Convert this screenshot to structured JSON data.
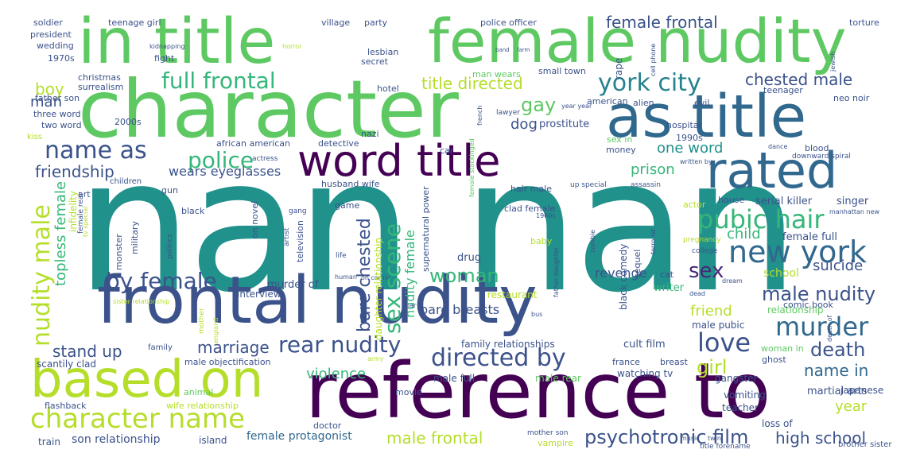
{
  "palette": {
    "teal": "#21918c",
    "yellow_green": "#b5de2b",
    "green": "#5ec962",
    "dark_purple": "#440154",
    "blue": "#3b528b",
    "mid_blue": "#31688e",
    "aqua": "#1fa187",
    "light_green": "#90d743",
    "purple": "#482878",
    "yellow": "#fde725",
    "sea": "#35b779",
    "indigo": "#443983",
    "cyan": "#26828e"
  },
  "words": [
    {
      "text": "nan nan",
      "color": "#21918c"
    },
    {
      "text": "character",
      "color": "#5ec962"
    },
    {
      "text": "in title",
      "color": "#5ec962"
    },
    {
      "text": "female nudity",
      "color": "#5ec962"
    },
    {
      "text": "frontal nudity",
      "color": "#3b528b"
    },
    {
      "text": "reference to",
      "color": "#440154"
    },
    {
      "text": "based on",
      "color": "#b5de2b"
    },
    {
      "text": "as title",
      "color": "#31688e"
    },
    {
      "text": "word title",
      "color": "#440154"
    },
    {
      "text": "rated",
      "color": "#31688e"
    },
    {
      "text": "new york",
      "color": "#31688e"
    },
    {
      "text": "york city",
      "color": "#26828e"
    },
    {
      "text": "character name",
      "color": "#b5de2b"
    },
    {
      "text": "full frontal",
      "color": "#35b779"
    },
    {
      "text": "name as",
      "color": "#3b528b"
    },
    {
      "text": "police",
      "color": "#35b779"
    },
    {
      "text": "pubic hair",
      "color": "#35b779"
    },
    {
      "text": "by female",
      "color": "#3b528b"
    },
    {
      "text": "directed by",
      "color": "#3b528b"
    },
    {
      "text": "murder",
      "color": "#31688e"
    },
    {
      "text": "rear nudity",
      "color": "#3b528b"
    },
    {
      "text": "love",
      "color": "#3b528b"
    },
    {
      "text": "woman",
      "color": "#35b779"
    },
    {
      "text": "male nudity",
      "color": "#3b528b"
    },
    {
      "text": "psychotronic film",
      "color": "#3b528b"
    },
    {
      "text": "sex",
      "color": "#482878"
    },
    {
      "text": "death",
      "color": "#3b528b"
    },
    {
      "text": "girl",
      "color": "#b5de2b"
    },
    {
      "text": "title directed",
      "color": "#b5de2b"
    },
    {
      "text": "male frontal",
      "color": "#b5de2b"
    },
    {
      "text": "high school",
      "color": "#3b528b"
    },
    {
      "text": "gay",
      "color": "#5ec962"
    },
    {
      "text": "boy",
      "color": "#b5de2b"
    },
    {
      "text": "friendship",
      "color": "#3b528b"
    },
    {
      "text": "chested male",
      "color": "#3b528b"
    },
    {
      "text": "female frontal",
      "color": "#3b528b"
    },
    {
      "text": "marriage",
      "color": "#3b528b"
    },
    {
      "text": "stand up",
      "color": "#3b528b"
    },
    {
      "text": "name in",
      "color": "#31688e"
    },
    {
      "text": "violence",
      "color": "#35b779"
    },
    {
      "text": "friend",
      "color": "#b5de2b"
    },
    {
      "text": "child",
      "color": "#35b779"
    },
    {
      "text": "prison",
      "color": "#35b779"
    },
    {
      "text": "one word",
      "color": "#21918c"
    },
    {
      "text": "suicide",
      "color": "#3b528b"
    },
    {
      "text": "dog",
      "color": "#3b528b"
    },
    {
      "text": "man",
      "color": "#3b528b"
    },
    {
      "text": "wears eyeglasses",
      "color": "#3b528b"
    },
    {
      "text": "bare breasts",
      "color": "#3b528b"
    },
    {
      "text": "year",
      "color": "#b5de2b"
    },
    {
      "text": "female protagonist",
      "color": "#31688e"
    },
    {
      "text": "son relationship",
      "color": "#3b528b"
    },
    {
      "text": "revenge",
      "color": "#3b528b"
    },
    {
      "text": "school",
      "color": "#b5de2b"
    },
    {
      "text": "female full",
      "color": "#3b528b"
    },
    {
      "text": "serial killer",
      "color": "#3b528b"
    },
    {
      "text": "singer",
      "color": "#3b528b"
    },
    {
      "text": "prostitute",
      "color": "#3b528b"
    },
    {
      "text": "drug",
      "color": "#3b528b"
    },
    {
      "text": "murder of",
      "color": "#3b528b"
    },
    {
      "text": "writer",
      "color": "#35b779"
    },
    {
      "text": "cult film",
      "color": "#3b528b"
    },
    {
      "text": "male pubic",
      "color": "#3b528b"
    },
    {
      "text": "relationship",
      "color": "#5ec962"
    },
    {
      "text": "martial arts",
      "color": "#3b528b"
    },
    {
      "text": "japanese",
      "color": "#3b528b"
    },
    {
      "text": "vomiting",
      "color": "#3b528b"
    },
    {
      "text": "gangster",
      "color": "#3b528b"
    },
    {
      "text": "teacher",
      "color": "#3b528b"
    },
    {
      "text": "loss of",
      "color": "#3b528b"
    },
    {
      "text": "family relationships",
      "color": "#3b528b"
    },
    {
      "text": "male full",
      "color": "#3b528b"
    },
    {
      "text": "male rear",
      "color": "#5ec962"
    },
    {
      "text": "watching tv",
      "color": "#3b528b"
    },
    {
      "text": "france",
      "color": "#3b528b"
    },
    {
      "text": "breast",
      "color": "#3b528b"
    },
    {
      "text": "ghost",
      "color": "#3b528b"
    },
    {
      "text": "woman in",
      "color": "#5ec962"
    },
    {
      "text": "interview",
      "color": "#3b528b"
    },
    {
      "text": "restaurant",
      "color": "#b5de2b"
    },
    {
      "text": "comic book",
      "color": "#3b528b"
    },
    {
      "text": "cat",
      "color": "#3b528b"
    },
    {
      "text": "scantily clad",
      "color": "#3b528b"
    },
    {
      "text": "male objectification",
      "color": "#3b528b"
    },
    {
      "text": "family",
      "color": "#3b528b"
    },
    {
      "text": "animal",
      "color": "#5ec962"
    },
    {
      "text": "flashback",
      "color": "#3b528b"
    },
    {
      "text": "wife relationship",
      "color": "#b5de2b"
    },
    {
      "text": "train",
      "color": "#3b528b"
    },
    {
      "text": "island",
      "color": "#3b528b"
    },
    {
      "text": "doctor",
      "color": "#3b528b"
    },
    {
      "text": "movie",
      "color": "#3b528b"
    },
    {
      "text": "mother son",
      "color": "#3b528b"
    },
    {
      "text": "vampire",
      "color": "#b5de2b"
    },
    {
      "text": "title forename",
      "color": "#3b528b"
    },
    {
      "text": "brother sister",
      "color": "#3b528b"
    },
    {
      "text": "soldier",
      "color": "#3b528b"
    },
    {
      "text": "teenage girl",
      "color": "#3b528b"
    },
    {
      "text": "village",
      "color": "#3b528b"
    },
    {
      "text": "party",
      "color": "#3b528b"
    },
    {
      "text": "police officer",
      "color": "#3b528b"
    },
    {
      "text": "torture",
      "color": "#3b528b"
    },
    {
      "text": "president",
      "color": "#3b528b"
    },
    {
      "text": "kidnapping",
      "color": "#3b528b"
    },
    {
      "text": "horror",
      "color": "#b5de2b"
    },
    {
      "text": "band",
      "color": "#3b528b"
    },
    {
      "text": "farm",
      "color": "#3b528b"
    },
    {
      "text": "wedding",
      "color": "#3b528b"
    },
    {
      "text": "lesbian",
      "color": "#3b528b"
    },
    {
      "text": "1970s",
      "color": "#3b528b"
    },
    {
      "text": "fight",
      "color": "#3b528b"
    },
    {
      "text": "secret",
      "color": "#3b528b"
    },
    {
      "text": "small town",
      "color": "#3b528b"
    },
    {
      "text": "man wears",
      "color": "#5ec962"
    },
    {
      "text": "christmas",
      "color": "#3b528b"
    },
    {
      "text": "surrealism",
      "color": "#3b528b"
    },
    {
      "text": "hotel",
      "color": "#3b528b"
    },
    {
      "text": "father son",
      "color": "#3b528b"
    },
    {
      "text": "three word",
      "color": "#3b528b"
    },
    {
      "text": "two word",
      "color": "#3b528b"
    },
    {
      "text": "2000s",
      "color": "#3b528b"
    },
    {
      "text": "nazi",
      "color": "#3b528b"
    },
    {
      "text": "kiss",
      "color": "#b5de2b"
    },
    {
      "text": "african american",
      "color": "#3b528b"
    },
    {
      "text": "detective",
      "color": "#3b528b"
    },
    {
      "text": "lawyer",
      "color": "#3b528b"
    },
    {
      "text": "american",
      "color": "#3b528b"
    },
    {
      "text": "alien",
      "color": "#3b528b"
    },
    {
      "text": "evil",
      "color": "#3b528b"
    },
    {
      "text": "year year",
      "color": "#3b528b"
    },
    {
      "text": "teenager",
      "color": "#3b528b"
    },
    {
      "text": "neo noir",
      "color": "#3b528b"
    },
    {
      "text": "hospital",
      "color": "#3b528b"
    },
    {
      "text": "1990s",
      "color": "#3b528b"
    },
    {
      "text": "sex in",
      "color": "#5ec962"
    },
    {
      "text": "money",
      "color": "#3b528b"
    },
    {
      "text": "car",
      "color": "#3b528b"
    },
    {
      "text": "blood",
      "color": "#3b528b"
    },
    {
      "text": "dance",
      "color": "#3b528b"
    },
    {
      "text": "downward spiral",
      "color": "#3b528b"
    },
    {
      "text": "written by",
      "color": "#3b528b"
    },
    {
      "text": "actress",
      "color": "#3b528b"
    },
    {
      "text": "husband wife",
      "color": "#3b528b"
    },
    {
      "text": "children",
      "color": "#3b528b"
    },
    {
      "text": "gun",
      "color": "#3b528b"
    },
    {
      "text": "art",
      "color": "#3b528b"
    },
    {
      "text": "hair male",
      "color": "#3b528b"
    },
    {
      "text": "up special",
      "color": "#3b528b"
    },
    {
      "text": "assassin",
      "color": "#3b528b"
    },
    {
      "text": "house",
      "color": "#3b528b"
    },
    {
      "text": "actor",
      "color": "#b5de2b"
    },
    {
      "text": "black",
      "color": "#3b528b"
    },
    {
      "text": "gang",
      "color": "#3b528b"
    },
    {
      "text": "game",
      "color": "#3b528b"
    },
    {
      "text": "clad female",
      "color": "#3b528b"
    },
    {
      "text": "1960s",
      "color": "#3b528b"
    },
    {
      "text": "manhattan new",
      "color": "#3b528b"
    },
    {
      "text": "pregnancy",
      "color": "#b5de2b"
    },
    {
      "text": "baby",
      "color": "#b5de2b"
    },
    {
      "text": "college",
      "color": "#3b528b"
    },
    {
      "text": "life",
      "color": "#3b528b"
    },
    {
      "text": "human",
      "color": "#3b528b"
    },
    {
      "text": "on comic",
      "color": "#3b528b"
    },
    {
      "text": "dream",
      "color": "#3b528b"
    },
    {
      "text": "dead",
      "color": "#3b528b"
    },
    {
      "text": "bar",
      "color": "#3b528b"
    },
    {
      "text": "bus",
      "color": "#3b528b"
    },
    {
      "text": "army",
      "color": "#b5de2b"
    },
    {
      "text": "music",
      "color": "#3b528b"
    },
    {
      "text": "twin",
      "color": "#3b528b"
    },
    {
      "text": "sister relationship",
      "color": "#b5de2b"
    },
    {
      "text": "nudity male",
      "color": "#b5de2b"
    },
    {
      "text": "topless female",
      "color": "#35b779"
    },
    {
      "text": "infidelity",
      "color": "#b5de2b"
    },
    {
      "text": "female rear",
      "color": "#3b528b"
    },
    {
      "text": "tv special",
      "color": "#b5de2b"
    },
    {
      "text": "monster",
      "color": "#3b528b"
    },
    {
      "text": "military",
      "color": "#3b528b"
    },
    {
      "text": "politics",
      "color": "#3b528b"
    },
    {
      "text": "mother",
      "color": "#b5de2b"
    },
    {
      "text": "england",
      "color": "#b5de2b"
    },
    {
      "text": "on novel",
      "color": "#3b528b"
    },
    {
      "text": "artist",
      "color": "#3b528b"
    },
    {
      "text": "television",
      "color": "#3b528b"
    },
    {
      "text": "bare chested",
      "color": "#3b528b"
    },
    {
      "text": "daughter relationship",
      "color": "#b5de2b"
    },
    {
      "text": "sex scene",
      "color": "#35b779"
    },
    {
      "text": "nudity female",
      "color": "#35b779"
    },
    {
      "text": "supernatural power",
      "color": "#3b528b"
    },
    {
      "text": "female stockinged",
      "color": "#5ec962"
    },
    {
      "text": "french",
      "color": "#3b528b"
    },
    {
      "text": "rape",
      "color": "#3b528b"
    },
    {
      "text": "cell phone",
      "color": "#3b528b"
    },
    {
      "text": "jewish",
      "color": "#3b528b"
    },
    {
      "text": "black comedy",
      "color": "#3b528b"
    },
    {
      "text": "sequel",
      "color": "#3b528b"
    },
    {
      "text": "zombie",
      "color": "#3b528b"
    },
    {
      "text": "terrorist",
      "color": "#3b528b"
    },
    {
      "text": "father daughter",
      "color": "#3b528b"
    },
    {
      "text": "death of",
      "color": "#3b528b"
    }
  ]
}
